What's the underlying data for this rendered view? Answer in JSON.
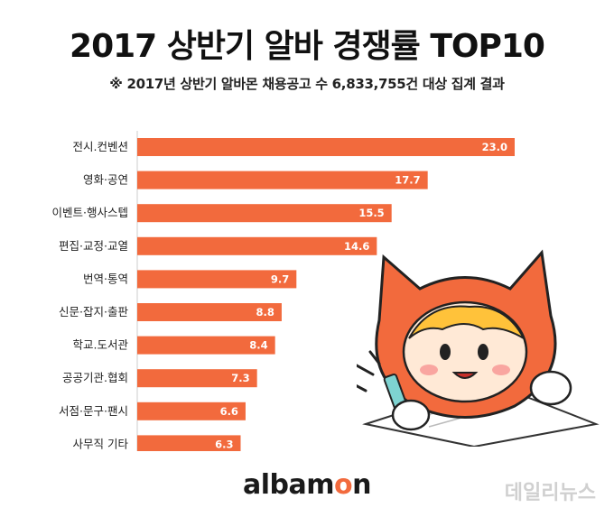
{
  "header": {
    "title": "2017 상반기 알바 경쟁률 TOP10",
    "subtitle": "※ 2017년 상반기 알바몬 채용공고 수 6,833,755건 대상 집계 결과"
  },
  "branding": {
    "logo_prefix": "albam",
    "logo_accent": "o",
    "logo_suffix": "n",
    "watermark": "데일리뉴스"
  },
  "colors": {
    "bar": "#f26a3d",
    "accent": "#f26a3d"
  },
  "chart_data": {
    "type": "bar",
    "orientation": "horizontal",
    "title": "2017 상반기 알바 경쟁률 TOP10",
    "subtitle": "※ 2017년 상반기 알바몬 채용공고 수 6,833,755건 대상 집계 결과",
    "categories": [
      "전시.컨벤션",
      "영화·공연",
      "이벤트·행사스텝",
      "편집·교정·교열",
      "번역·통역",
      "신문·잡지·출판",
      "학교.도서관",
      "공공기관.협회",
      "서점·문구·팬시",
      "사무직 기타"
    ],
    "values": [
      23.0,
      17.7,
      15.5,
      14.6,
      9.7,
      8.8,
      8.4,
      7.3,
      6.6,
      6.3
    ],
    "value_labels": [
      "23.0",
      "17.7",
      "15.5",
      "14.6",
      "9.7",
      "8.8",
      "8.4",
      "7.3",
      "6.6",
      "6.3"
    ],
    "xlim": [
      0,
      23.0
    ],
    "grid": false,
    "legend": "none"
  }
}
